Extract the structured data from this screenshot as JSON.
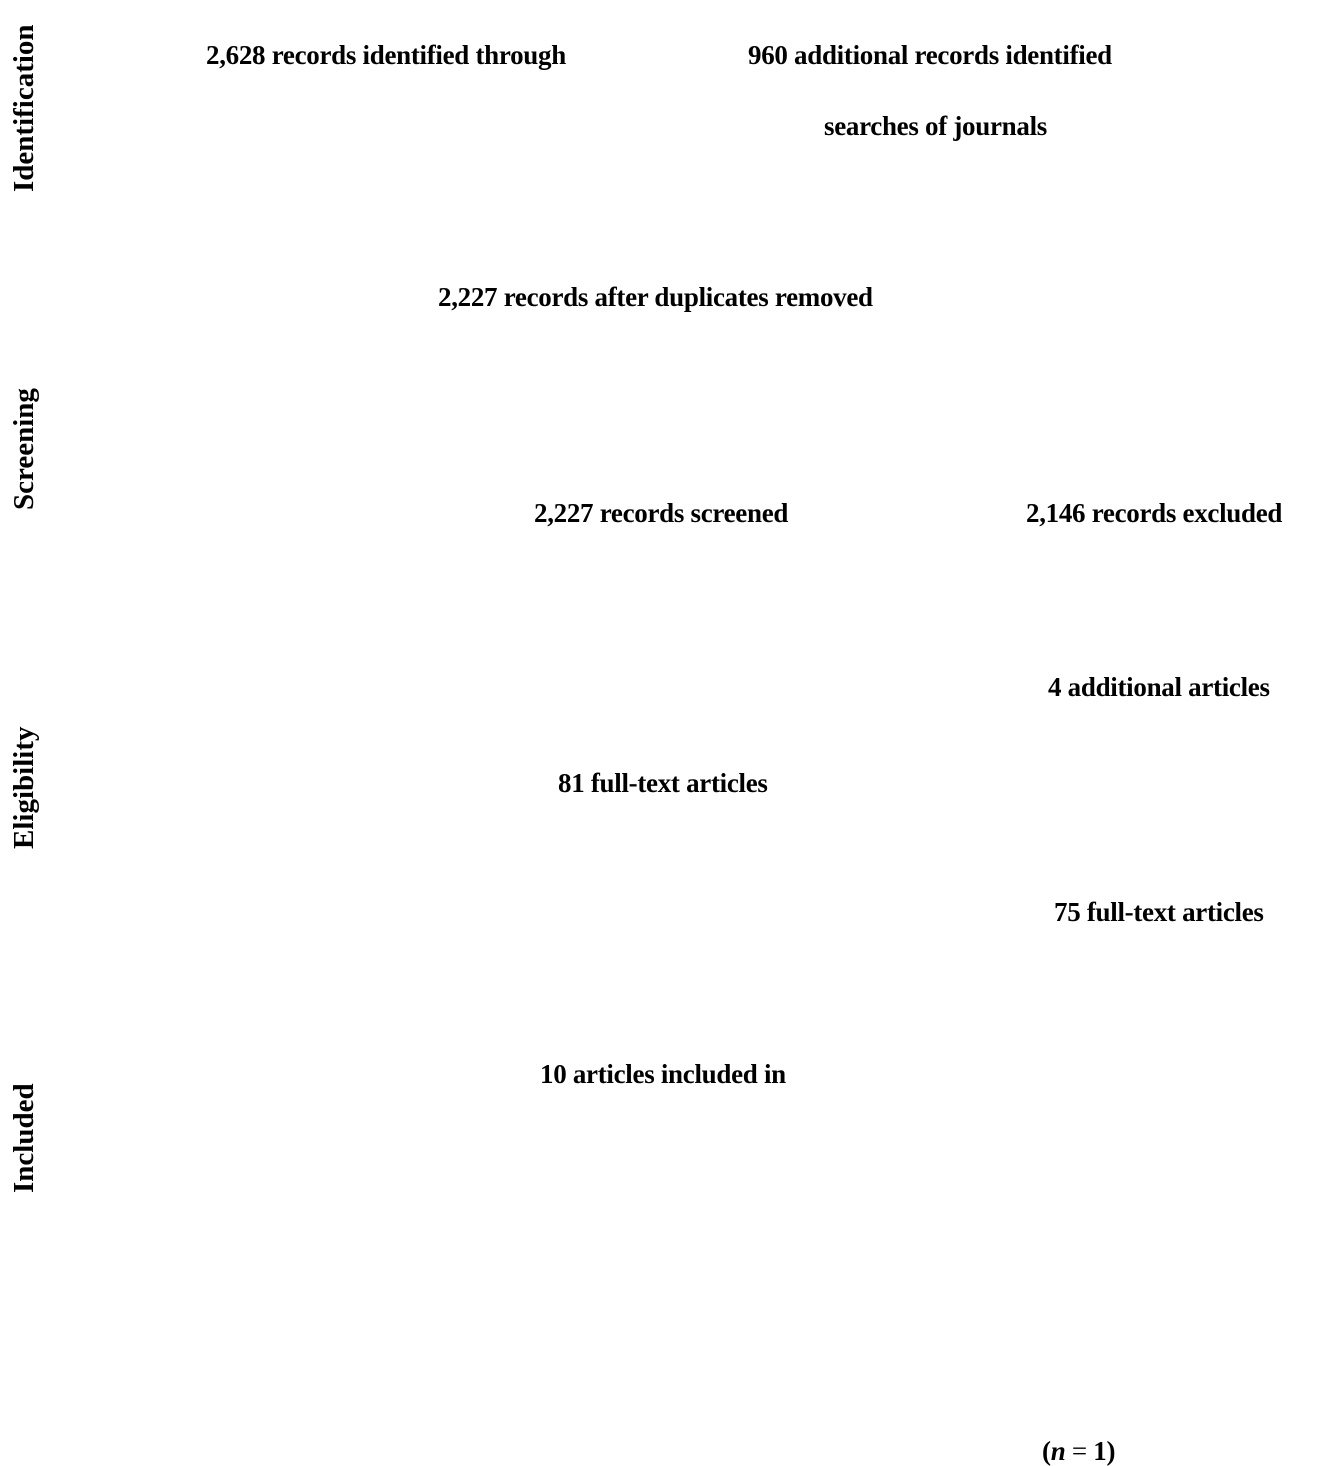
{
  "stages": {
    "identification": "Identification",
    "screening": "Screening",
    "eligibility": "Eligibility",
    "included": "Included"
  },
  "boxes": {
    "records_identified": "2,628 records identified through",
    "additional_records": "960 additional records identified",
    "searches_of_journals": "searches of journals",
    "after_duplicates": "2,227 records after duplicates removed",
    "records_screened": "2,227 records screened",
    "records_excluded": "2,146 records excluded",
    "additional_articles": "4 additional articles",
    "full_text_assessed": "81 full-text articles",
    "full_text_excluded": "75 full-text articles",
    "articles_included": "10 articles included in"
  },
  "footnote": {
    "n_symbol": "n",
    "equals": " = ",
    "n_value": "1"
  }
}
